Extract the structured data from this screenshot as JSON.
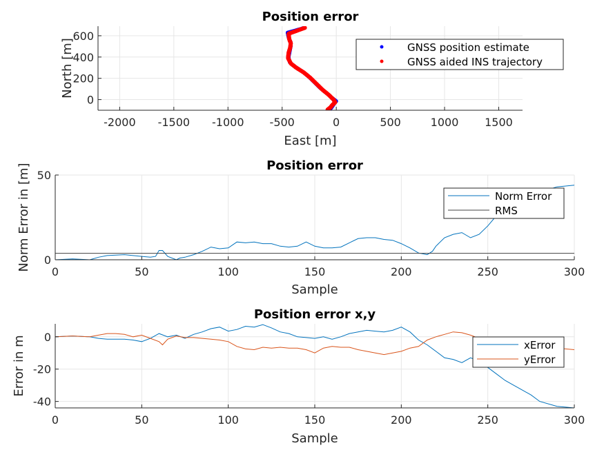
{
  "chart_data": [
    {
      "type": "line",
      "title": "Position error",
      "xlabel": "East [m]",
      "ylabel": "North [m]",
      "xlim": [
        -2200,
        1720
      ],
      "ylim": [
        -100,
        690
      ],
      "xticks": [
        -2000,
        -1500,
        -1000,
        -500,
        0,
        500,
        1000,
        1500
      ],
      "yticks": [
        0,
        200,
        400,
        600
      ],
      "xtick_labels": [
        "-2000",
        "-1500",
        "-1000",
        "-500",
        "0",
        "500",
        "1000",
        "1500"
      ],
      "ytick_labels": [
        "0",
        "200",
        "400",
        "600"
      ],
      "grid": true,
      "legend_position": "top-right",
      "series": [
        {
          "name": "GNSS position estimate",
          "color": "#0000ff",
          "marker": "dot",
          "points": [
            [
              -60,
              -95
            ],
            [
              -40,
              -70
            ],
            [
              -20,
              -40
            ],
            [
              0,
              -15
            ],
            [
              -30,
              10
            ],
            [
              -90,
              60
            ],
            [
              -150,
              110
            ],
            [
              -200,
              160
            ],
            [
              -250,
              210
            ],
            [
              -320,
              270
            ],
            [
              -380,
              310
            ],
            [
              -430,
              350
            ],
            [
              -440,
              400
            ],
            [
              -430,
              450
            ],
            [
              -420,
              500
            ],
            [
              -420,
              540
            ],
            [
              -440,
              580
            ],
            [
              -450,
              630
            ],
            [
              -380,
              650
            ],
            [
              -310,
              670
            ]
          ]
        },
        {
          "name": "GNSS aided INS trajectory",
          "color": "#ff0000",
          "marker": "dot",
          "points": [
            [
              -80,
              -95
            ],
            [
              -55,
              -75
            ],
            [
              -35,
              -50
            ],
            [
              -10,
              -25
            ],
            [
              -25,
              0
            ],
            [
              -70,
              45
            ],
            [
              -130,
              95
            ],
            [
              -185,
              150
            ],
            [
              -240,
              205
            ],
            [
              -300,
              255
            ],
            [
              -370,
              300
            ],
            [
              -420,
              340
            ],
            [
              -445,
              390
            ],
            [
              -440,
              440
            ],
            [
              -425,
              490
            ],
            [
              -420,
              530
            ],
            [
              -435,
              570
            ],
            [
              -440,
              620
            ],
            [
              -370,
              645
            ],
            [
              -290,
              675
            ]
          ]
        }
      ]
    },
    {
      "type": "line",
      "title": "Position error",
      "xlabel": "Sample",
      "ylabel": "Norm Error in [m]",
      "xlim": [
        0,
        300
      ],
      "ylim": [
        0,
        50
      ],
      "xticks": [
        0,
        50,
        100,
        150,
        200,
        250,
        300
      ],
      "yticks": [
        0,
        50
      ],
      "xtick_labels": [
        "0",
        "50",
        "100",
        "150",
        "200",
        "250",
        "300"
      ],
      "ytick_labels": [
        "0",
        "50"
      ],
      "grid": true,
      "legend_position": "top-right",
      "series": [
        {
          "name": "Norm Error",
          "color": "#0072bd",
          "x": [
            0,
            10,
            20,
            25,
            30,
            40,
            45,
            50,
            55,
            58,
            60,
            62,
            65,
            70,
            72,
            75,
            80,
            85,
            90,
            95,
            100,
            105,
            110,
            115,
            120,
            125,
            130,
            135,
            140,
            145,
            150,
            155,
            160,
            165,
            170,
            175,
            180,
            185,
            190,
            195,
            200,
            205,
            210,
            215,
            218,
            220,
            225,
            230,
            235,
            240,
            245,
            250,
            255,
            260,
            270,
            280,
            290,
            300
          ],
          "y": [
            0,
            0.5,
            0,
            1.5,
            2.5,
            3,
            2.5,
            2,
            1.5,
            2,
            5.5,
            5.5,
            2,
            0,
            1,
            1.5,
            3,
            5,
            7.5,
            6.5,
            7,
            10.5,
            10,
            10.5,
            9.5,
            9.5,
            8,
            7.5,
            8,
            10.5,
            8,
            7,
            7,
            7.5,
            10,
            12.5,
            13,
            13,
            12,
            11.5,
            9.5,
            7,
            4,
            3,
            5,
            8,
            13,
            15,
            16,
            13,
            15,
            20,
            26,
            32,
            36,
            40,
            43,
            44
          ]
        },
        {
          "name": "RMS",
          "color": "#404040",
          "y_constant": 3.8
        }
      ]
    },
    {
      "type": "line",
      "title": "Position error x,y",
      "xlabel": "Sample",
      "ylabel": "Error in m",
      "xlim": [
        0,
        300
      ],
      "ylim": [
        -44,
        8
      ],
      "xticks": [
        0,
        50,
        100,
        150,
        200,
        250,
        300
      ],
      "yticks": [
        -40,
        -20,
        0
      ],
      "xtick_labels": [
        "0",
        "50",
        "100",
        "150",
        "200",
        "250",
        "300"
      ],
      "ytick_labels": [
        "-40",
        "-20",
        "0"
      ],
      "grid": true,
      "legend_position": "top-right",
      "series": [
        {
          "name": "xError",
          "color": "#0072bd",
          "x": [
            0,
            10,
            20,
            25,
            30,
            40,
            45,
            50,
            55,
            60,
            65,
            70,
            75,
            80,
            85,
            90,
            95,
            100,
            105,
            110,
            115,
            120,
            125,
            130,
            135,
            140,
            145,
            150,
            155,
            160,
            165,
            170,
            175,
            180,
            185,
            190,
            195,
            200,
            205,
            210,
            215,
            220,
            225,
            230,
            235,
            240,
            245,
            250,
            255,
            260,
            265,
            270,
            275,
            280,
            290,
            300
          ],
          "y": [
            0,
            0.5,
            0,
            -1,
            -1.5,
            -1.5,
            -2,
            -3,
            -1,
            2,
            0,
            1,
            -1,
            1.5,
            3,
            5,
            6,
            3.5,
            4.5,
            6.5,
            6,
            7.5,
            5.5,
            3,
            2,
            0,
            -0.5,
            -1,
            0,
            -1.5,
            0,
            2,
            3,
            4,
            3.5,
            3,
            4,
            6,
            3,
            -2,
            -5,
            -9,
            -13,
            -14,
            -16,
            -13,
            -15,
            -19,
            -23,
            -27,
            -30,
            -33,
            -36,
            -40,
            -43,
            -44
          ]
        },
        {
          "name": "yError",
          "color": "#d95319",
          "x": [
            0,
            10,
            20,
            25,
            30,
            35,
            40,
            45,
            50,
            55,
            60,
            62,
            65,
            70,
            75,
            80,
            85,
            90,
            95,
            100,
            105,
            110,
            115,
            120,
            125,
            130,
            135,
            140,
            145,
            150,
            155,
            160,
            165,
            170,
            175,
            180,
            185,
            190,
            195,
            200,
            205,
            210,
            215,
            220,
            225,
            230,
            235,
            240,
            245,
            250,
            255,
            260,
            270,
            280,
            290,
            300
          ],
          "y": [
            0,
            0.5,
            0,
            1,
            2,
            2,
            1.5,
            0,
            1,
            -1,
            -3,
            -5,
            -1.5,
            0.5,
            -0.5,
            -0.5,
            -1,
            -1.5,
            -2,
            -3,
            -6,
            -7.5,
            -8,
            -6.5,
            -7,
            -6.5,
            -7,
            -7,
            -8,
            -10,
            -7,
            -6,
            -6.5,
            -6.5,
            -8,
            -9,
            -10,
            -11,
            -10,
            -9,
            -7,
            -6,
            -2,
            0,
            1.5,
            3,
            2.5,
            1,
            -1,
            -4,
            -5,
            -6,
            -7,
            -8,
            -7,
            -8
          ]
        }
      ]
    }
  ]
}
